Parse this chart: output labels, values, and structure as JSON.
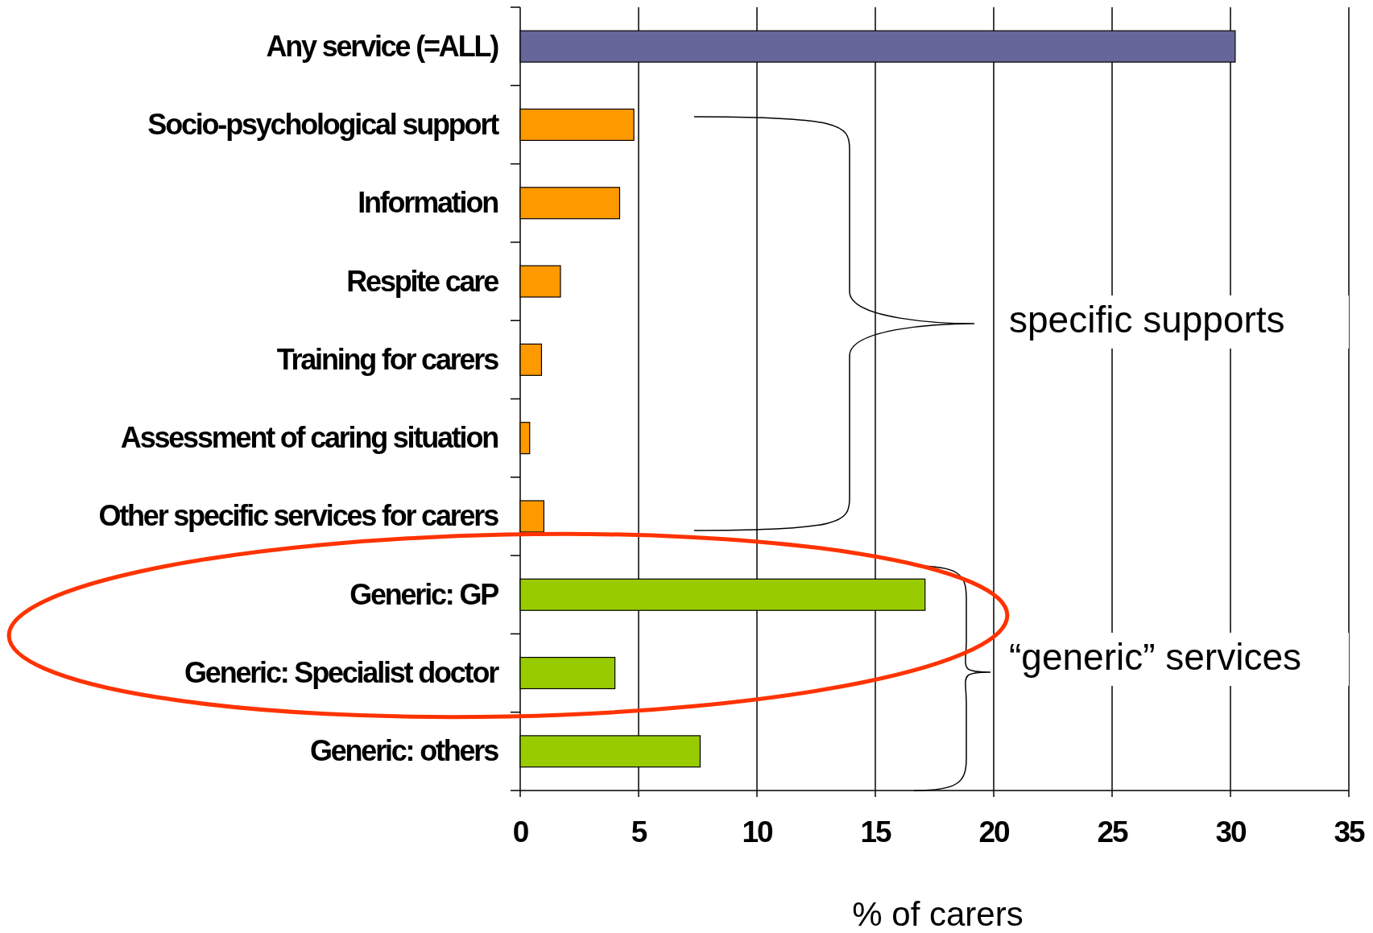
{
  "chart_data": {
    "type": "bar",
    "orientation": "horizontal",
    "xlabel": "% of carers",
    "categories": [
      "Any service (=ALL)",
      "Socio-psychological support",
      "Information",
      "Respite care",
      "Training for carers",
      "Assessment of caring situation",
      "Other specific services for carers",
      "Generic: GP",
      "Generic: Specialist doctor",
      "Generic: others"
    ],
    "values": [
      30.2,
      4.8,
      4.2,
      1.7,
      0.9,
      0.4,
      1.0,
      17.1,
      4.0,
      7.6
    ],
    "colors": [
      "#666699",
      "#ff9900",
      "#ff9900",
      "#ff9900",
      "#ff9900",
      "#ff9900",
      "#ff9900",
      "#99cc00",
      "#99cc00",
      "#99cc00"
    ],
    "xlim": [
      0,
      35
    ],
    "xticks": [
      0,
      5,
      10,
      15,
      20,
      25,
      30,
      35
    ],
    "grid": "x",
    "annotations": [
      "specific supports",
      "“generic” services"
    ]
  }
}
